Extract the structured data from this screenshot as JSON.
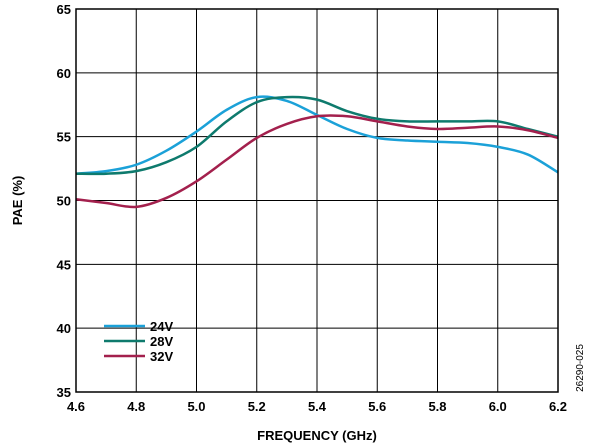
{
  "chart_data": {
    "type": "line",
    "xlabel": "FREQUENCY (GHz)",
    "ylabel": "PAE (%)",
    "xlim": [
      4.6,
      6.2
    ],
    "ylim": [
      35,
      65
    ],
    "x_ticks": [
      "4.6",
      "4.8",
      "5.0",
      "5.2",
      "5.4",
      "5.6",
      "5.8",
      "6.0",
      "6.2"
    ],
    "y_ticks": [
      "35",
      "40",
      "45",
      "50",
      "55",
      "60",
      "65"
    ],
    "grid": true,
    "legend_position": "bottom-left",
    "figure_id": "26290-025",
    "series": [
      {
        "name": "24V",
        "color": "#1ba1d8",
        "x": [
          4.6,
          4.7,
          4.8,
          4.9,
          5.0,
          5.1,
          5.2,
          5.3,
          5.4,
          5.5,
          5.6,
          5.7,
          5.8,
          5.9,
          6.0,
          6.1,
          6.2
        ],
        "y": [
          52.1,
          52.3,
          52.8,
          53.9,
          55.4,
          57.1,
          58.1,
          57.8,
          56.7,
          55.6,
          54.9,
          54.7,
          54.6,
          54.5,
          54.2,
          53.6,
          52.2
        ]
      },
      {
        "name": "28V",
        "color": "#0e7a6d",
        "x": [
          4.6,
          4.7,
          4.8,
          4.9,
          5.0,
          5.1,
          5.2,
          5.3,
          5.4,
          5.5,
          5.6,
          5.7,
          5.8,
          5.9,
          6.0,
          6.1,
          6.2
        ],
        "y": [
          52.1,
          52.1,
          52.3,
          53.0,
          54.2,
          56.2,
          57.7,
          58.1,
          57.9,
          57.0,
          56.4,
          56.2,
          56.2,
          56.2,
          56.2,
          55.6,
          55.0
        ]
      },
      {
        "name": "32V",
        "color": "#a3204d",
        "x": [
          4.6,
          4.7,
          4.8,
          4.9,
          5.0,
          5.1,
          5.2,
          5.3,
          5.4,
          5.5,
          5.6,
          5.7,
          5.8,
          5.9,
          6.0,
          6.1,
          6.2
        ],
        "y": [
          50.1,
          49.8,
          49.5,
          50.2,
          51.5,
          53.2,
          54.9,
          56.0,
          56.6,
          56.6,
          56.2,
          55.8,
          55.6,
          55.7,
          55.8,
          55.5,
          54.9
        ]
      }
    ]
  }
}
